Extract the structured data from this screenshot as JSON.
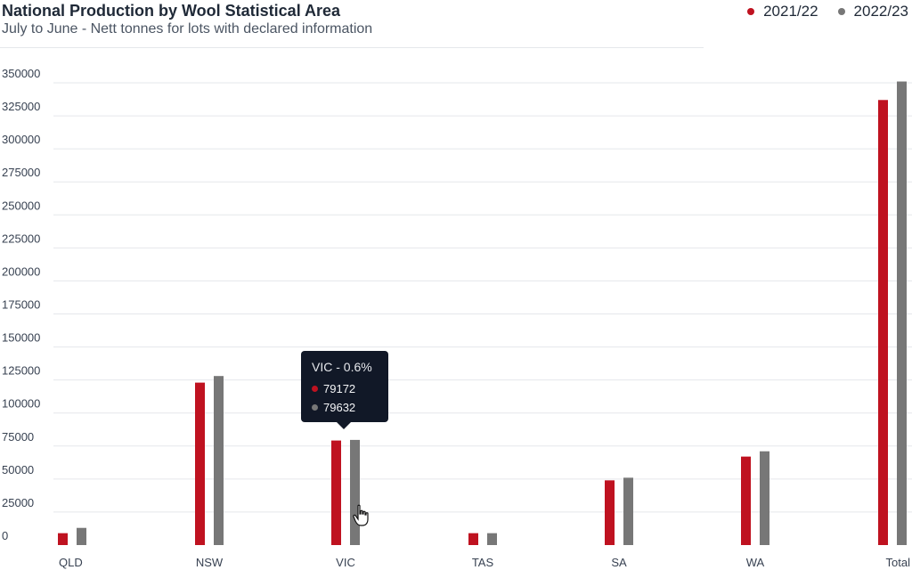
{
  "colors": {
    "series_2021": "#bf1220",
    "series_2022": "#777777",
    "grid": "#e5e7eb",
    "tooltip_bg": "#111827"
  },
  "tooltip": {
    "title": "VIC - 0.6%",
    "rows": [
      {
        "value": "79172",
        "color": "#bf1220"
      },
      {
        "value": "79632",
        "color": "#777777"
      }
    ]
  },
  "cursor": {
    "icon": "hand-pointer-icon"
  },
  "chart_data": {
    "type": "bar",
    "title": "National Production by Wool Statistical Area",
    "subtitle": "July to June - Nett tonnes for lots with declared information",
    "legend_position": "top-right",
    "grid": true,
    "categories": [
      "QLD",
      "NSW",
      "VIC",
      "TAS",
      "SA",
      "WA",
      "Total"
    ],
    "series": [
      {
        "name": "2021/22",
        "color": "#bf1220",
        "values": [
          9000,
          123000,
          79172,
          9000,
          49000,
          67000,
          337000
        ]
      },
      {
        "name": "2022/23",
        "color": "#777777",
        "values": [
          13000,
          128000,
          79632,
          9000,
          51000,
          71000,
          351000
        ]
      }
    ],
    "ylim": [
      0,
      350000
    ],
    "yticks": [
      "0",
      "25000",
      "50000",
      "75000",
      "100000",
      "125000",
      "150000",
      "175000",
      "200000",
      "225000",
      "250000",
      "275000",
      "300000",
      "325000",
      "350000"
    ]
  }
}
